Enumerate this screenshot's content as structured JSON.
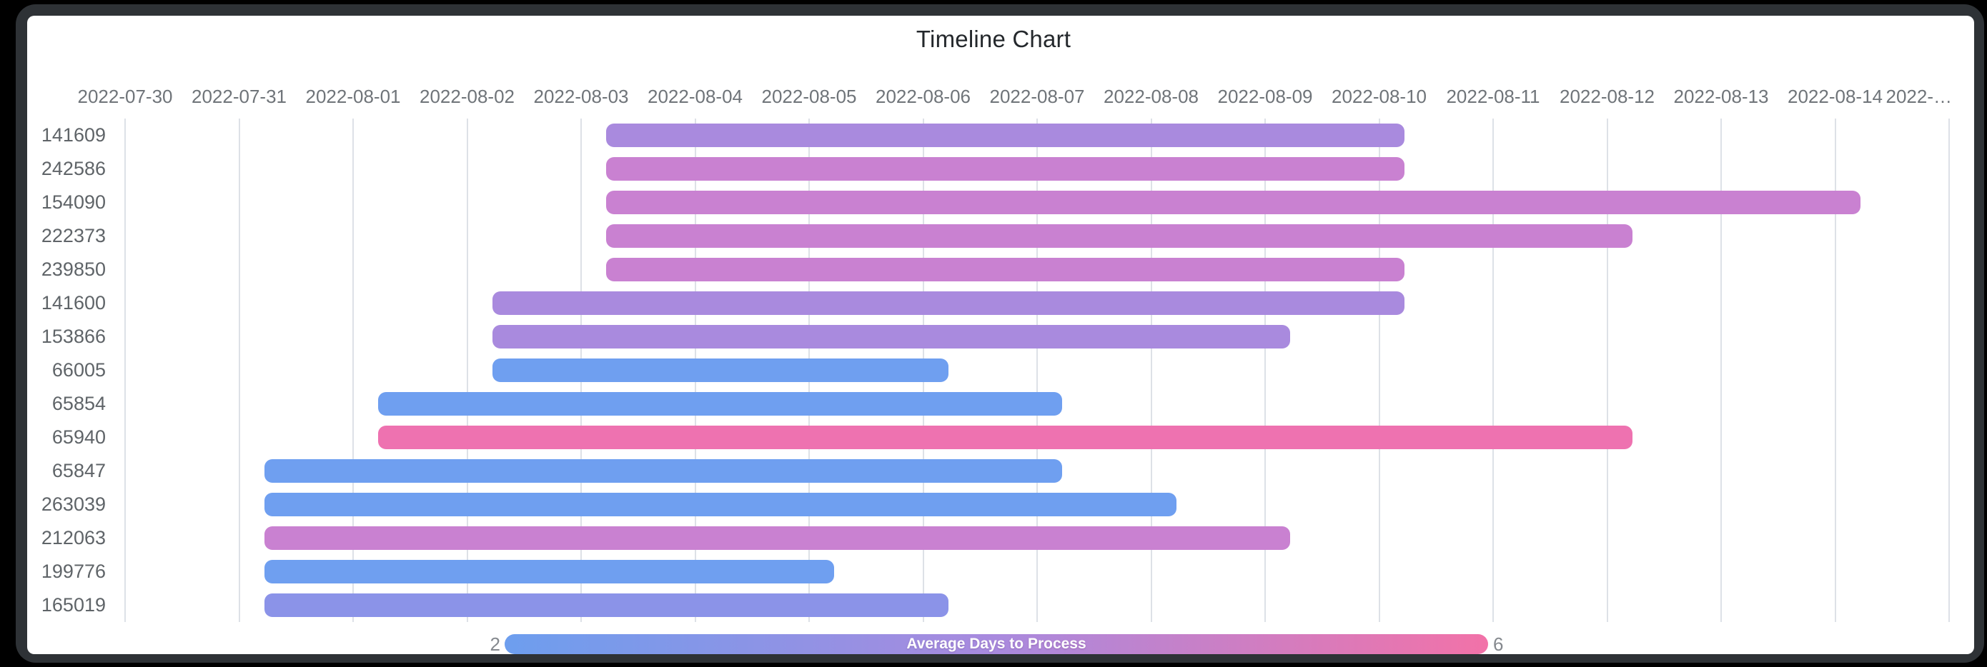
{
  "window": {
    "background_color": "#000000",
    "frame_color": "#2e3236",
    "panel_color": "#ffffff"
  },
  "chart_data": {
    "type": "bar",
    "subtype": "timeline-gantt",
    "title": "Timeline Chart",
    "x_axis": {
      "range_start": "2022-07-30",
      "range_end": "2022-08-15",
      "grid": true,
      "tick_labels": [
        "2022-07-30",
        "2022-07-31",
        "2022-08-01",
        "2022-08-02",
        "2022-08-03",
        "2022-08-04",
        "2022-08-05",
        "2022-08-06",
        "2022-08-07",
        "2022-08-08",
        "2022-08-09",
        "2022-08-10",
        "2022-08-11",
        "2022-08-12",
        "2022-08-13",
        "2022-08-14",
        "2022-…"
      ]
    },
    "rows": [
      {
        "id": "141609",
        "start": "2022-08-03",
        "end": "2022-08-10",
        "duration_days": 7,
        "color": "#a98ade",
        "avg_days_to_process_approx": 4
      },
      {
        "id": "242586",
        "start": "2022-08-03",
        "end": "2022-08-10",
        "duration_days": 7,
        "color": "#c981d1",
        "avg_days_to_process_approx": 4.8
      },
      {
        "id": "154090",
        "start": "2022-08-03",
        "end": "2022-08-14",
        "duration_days": 11,
        "color": "#c981d1",
        "avg_days_to_process_approx": 4.8
      },
      {
        "id": "222373",
        "start": "2022-08-03",
        "end": "2022-08-12",
        "duration_days": 9,
        "color": "#c981d1",
        "avg_days_to_process_approx": 4.8
      },
      {
        "id": "239850",
        "start": "2022-08-03",
        "end": "2022-08-10",
        "duration_days": 7,
        "color": "#c981d1",
        "avg_days_to_process_approx": 4.8
      },
      {
        "id": "141600",
        "start": "2022-08-02",
        "end": "2022-08-10",
        "duration_days": 8,
        "color": "#a98ade",
        "avg_days_to_process_approx": 4
      },
      {
        "id": "153866",
        "start": "2022-08-02",
        "end": "2022-08-09",
        "duration_days": 7,
        "color": "#a98ade",
        "avg_days_to_process_approx": 4
      },
      {
        "id": "66005",
        "start": "2022-08-02",
        "end": "2022-08-06",
        "duration_days": 4,
        "color": "#6f9ff0",
        "avg_days_to_process_approx": 2
      },
      {
        "id": "65854",
        "start": "2022-08-01",
        "end": "2022-08-07",
        "duration_days": 6,
        "color": "#6f9ff0",
        "avg_days_to_process_approx": 2
      },
      {
        "id": "65940",
        "start": "2022-08-01",
        "end": "2022-08-12",
        "duration_days": 11,
        "color": "#ee72b0",
        "avg_days_to_process_approx": 6
      },
      {
        "id": "65847",
        "start": "2022-07-31",
        "end": "2022-08-07",
        "duration_days": 7,
        "color": "#6f9ff0",
        "avg_days_to_process_approx": 2
      },
      {
        "id": "263039",
        "start": "2022-07-31",
        "end": "2022-08-08",
        "duration_days": 8,
        "color": "#6f9ff0",
        "avg_days_to_process_approx": 2
      },
      {
        "id": "212063",
        "start": "2022-07-31",
        "end": "2022-08-09",
        "duration_days": 9,
        "color": "#c981d1",
        "avg_days_to_process_approx": 4.8
      },
      {
        "id": "199776",
        "start": "2022-07-31",
        "end": "2022-08-05",
        "duration_days": 5,
        "color": "#6f9ff0",
        "avg_days_to_process_approx": 2
      },
      {
        "id": "165019",
        "start": "2022-07-31",
        "end": "2022-08-06",
        "duration_days": 6,
        "color": "#8b93e8",
        "avg_days_to_process_approx": 2.7
      }
    ],
    "legend": {
      "label": "Average Days to Process",
      "min": "2",
      "max": "6",
      "legend_position": "bottom",
      "gradient": [
        "#6d9eee",
        "#a98ade",
        "#f272a8"
      ]
    }
  }
}
